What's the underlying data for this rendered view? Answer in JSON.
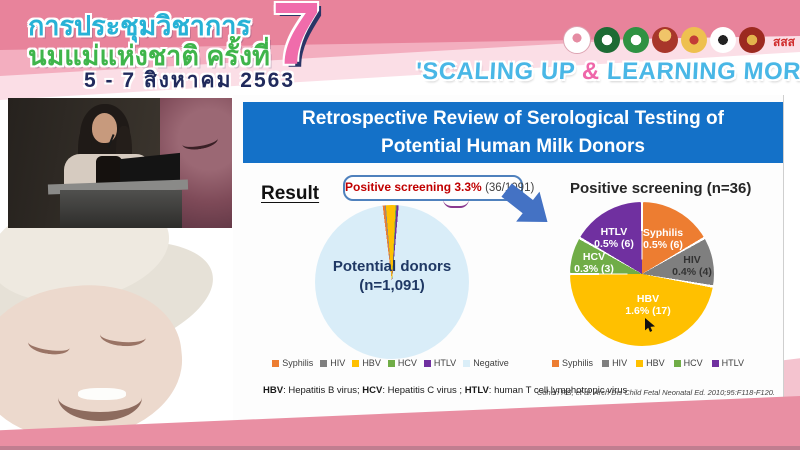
{
  "banner": {
    "title_line1": "การประชุมวิชาการ",
    "title_line2": "นมแม่แห่งชาติ ครั้งที่",
    "date_line": "5 - 7 สิงหาคม 2563",
    "edition_number": "7",
    "slogan": {
      "prefix": "'SCALING UP ",
      "amp": "&",
      "suffix": " LEARNING MORE'"
    },
    "logos": [
      {
        "name": "mother-child-foundation-logo"
      },
      {
        "name": "green-medical-seal-1"
      },
      {
        "name": "green-medical-seal-2"
      },
      {
        "name": "royal-thai-emblem"
      },
      {
        "name": "golden-crown-emblem"
      },
      {
        "name": "university-seal"
      },
      {
        "name": "red-institute-seal"
      },
      {
        "name": "thai-health-foundation-logo",
        "text": "สสส"
      }
    ],
    "colors": {
      "stripe_dark": "#e8839b",
      "stripe_mid": "#f3aebf",
      "stripe_light": "#fbdee6",
      "thai_teal": "#27b2d6",
      "thai_green": "#3fb54b",
      "date_navy": "#202a5c",
      "seven_pink": "#f06cab",
      "slogan_blue": "#49b7e6",
      "slogan_amp_pink": "#ef66a9"
    }
  },
  "slide": {
    "title_line1": "Retrospective Review of Serological Testing of",
    "title_line2": "Potential Human Milk Donors",
    "title_bg_color": "#1471c8",
    "result_label": "Result",
    "footnote": {
      "abbr1": "HBV",
      "def1": ": Hepatitis B virus; ",
      "abbr2": "HCV",
      "def2": ": Hepatitis C virus ; ",
      "abbr3": "HTLV",
      "def3": ": human T cell lymphotropic virus"
    },
    "citation": "Cohen RS, et al. Arch Dis Child Fetal Neonatal Ed. 2010;95:F118-F120."
  },
  "chart_data": [
    {
      "type": "pie",
      "title": "Potential donors (n=1,091)",
      "center_line1": "Potential donors",
      "center_line2": "(n=1,091)",
      "callout_highlight": "Positive screening 3.3%",
      "callout_detail": "(36/1091)",
      "total": 1091,
      "positive_total": 36,
      "positive_pct": 3.3,
      "slices": [
        {
          "label": "Syphilis",
          "pct": 0.5,
          "color": "#ed7d31"
        },
        {
          "label": "HIV",
          "pct": 0.4,
          "color": "#7f7f7f"
        },
        {
          "label": "HBV",
          "pct": 1.6,
          "color": "#ffc000"
        },
        {
          "label": "HCV",
          "pct": 0.3,
          "color": "#70ad47"
        },
        {
          "label": "HTLV",
          "pct": 0.5,
          "color": "#7030a0"
        },
        {
          "label": "Negative",
          "pct": 96.7,
          "color": "#d9edf8"
        }
      ],
      "legend": [
        {
          "label": "Syphilis"
        },
        {
          "label": "HIV"
        },
        {
          "label": "HBV"
        },
        {
          "label": "HCV"
        },
        {
          "label": "HTLV"
        },
        {
          "label": "Negative"
        }
      ],
      "legend_position": "bottom"
    },
    {
      "type": "pie",
      "title": "Positive screening (n=36)",
      "total": 36,
      "slices": [
        {
          "name": "Syphilis",
          "stat": "0.5% (6)",
          "count": 6,
          "pct": 0.5,
          "color": "#ed7d31"
        },
        {
          "name": "HIV",
          "stat": "0.4% (4)",
          "count": 4,
          "pct": 0.4,
          "color": "#7f7f7f"
        },
        {
          "name": "HBV",
          "stat": "1.6% (17)",
          "count": 17,
          "pct": 1.6,
          "color": "#ffc000"
        },
        {
          "name": "HCV",
          "stat": "0.3% (3)",
          "count": 3,
          "pct": 0.3,
          "color": "#70ad47"
        },
        {
          "name": "HTLV",
          "stat": "0.5% (6)",
          "count": 6,
          "pct": 0.5,
          "color": "#7030a0"
        }
      ],
      "legend": [
        {
          "label": "Syphilis"
        },
        {
          "label": "HIV"
        },
        {
          "label": "HBV"
        },
        {
          "label": "HCV"
        },
        {
          "label": "HTLV"
        }
      ],
      "legend_position": "bottom"
    }
  ]
}
